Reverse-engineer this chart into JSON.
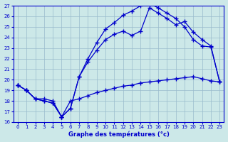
{
  "title": "Graphe des températures (°c)",
  "bg_color": "#cce8e8",
  "line_color": "#0000cc",
  "grid_color": "#99bbcc",
  "ylim": [
    16,
    27
  ],
  "xlim": [
    -0.5,
    23.5
  ],
  "yticks": [
    16,
    17,
    18,
    19,
    20,
    21,
    22,
    23,
    24,
    25,
    26,
    27
  ],
  "xticks": [
    0,
    1,
    2,
    3,
    4,
    5,
    6,
    7,
    8,
    9,
    10,
    11,
    12,
    13,
    14,
    15,
    16,
    17,
    18,
    19,
    20,
    21,
    22,
    23
  ],
  "line1_x": [
    0,
    1,
    2,
    3,
    4,
    5,
    6,
    7,
    8,
    9,
    10,
    11,
    12,
    13,
    14,
    15,
    16,
    17,
    18,
    19,
    20,
    21,
    22,
    23
  ],
  "line1_y": [
    19.5,
    19.0,
    18.2,
    18.0,
    17.8,
    16.5,
    17.3,
    20.3,
    21.7,
    22.8,
    23.8,
    24.3,
    24.6,
    24.2,
    24.6,
    26.8,
    26.3,
    25.8,
    25.2,
    25.5,
    24.5,
    23.8,
    23.2,
    19.8
  ],
  "line2_x": [
    0,
    1,
    2,
    3,
    4,
    5,
    6,
    7,
    8,
    9,
    10,
    11,
    12,
    13,
    14,
    15,
    16,
    17,
    18,
    19,
    20,
    21,
    22,
    23
  ],
  "line2_y": [
    19.5,
    19.0,
    18.2,
    18.0,
    17.8,
    16.5,
    17.3,
    20.3,
    22.0,
    23.5,
    24.8,
    25.4,
    26.1,
    26.5,
    27.0,
    27.2,
    26.8,
    26.3,
    25.8,
    25.0,
    23.8,
    23.2,
    23.1,
    19.8
  ],
  "line3_x": [
    0,
    1,
    2,
    3,
    4,
    5,
    6,
    7,
    8,
    9,
    10,
    11,
    12,
    13,
    14,
    15,
    16,
    17,
    18,
    19,
    20,
    21,
    22,
    23
  ],
  "line3_y": [
    19.5,
    19.0,
    18.2,
    18.2,
    18.0,
    16.5,
    18.0,
    18.2,
    18.5,
    18.8,
    19.0,
    19.2,
    19.4,
    19.5,
    19.7,
    19.8,
    19.9,
    20.0,
    20.1,
    20.2,
    20.3,
    20.1,
    19.9,
    19.8
  ]
}
